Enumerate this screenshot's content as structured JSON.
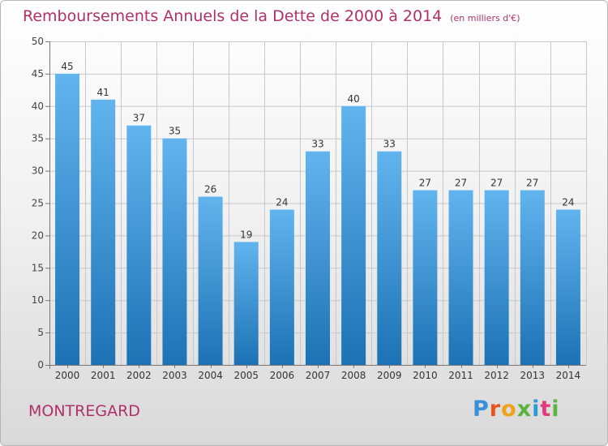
{
  "header": {
    "title": "Remboursements Annuels de la Dette de 2000 à 2014",
    "unit": "(en milliers d'€)"
  },
  "footer": {
    "commune": "MONTREGARD",
    "logo": "Proxiti"
  },
  "colors": {
    "title": "#b0306a",
    "bar_top": "#62b4ee",
    "bar_bottom": "#1c72b4"
  },
  "chart_data": {
    "type": "bar",
    "categories": [
      "2000",
      "2001",
      "2002",
      "2003",
      "2004",
      "2005",
      "2006",
      "2007",
      "2008",
      "2009",
      "2010",
      "2011",
      "2012",
      "2013",
      "2014"
    ],
    "values": [
      45,
      41,
      37,
      35,
      26,
      19,
      24,
      33,
      40,
      33,
      27,
      27,
      27,
      27,
      24
    ],
    "title": "Remboursements Annuels de la Dette de 2000 à 2014",
    "unit": "(en milliers d'€)",
    "xlabel": "",
    "ylabel": "",
    "ylim": [
      0,
      50
    ],
    "yticks": [
      0,
      5,
      10,
      15,
      20,
      25,
      30,
      35,
      40,
      45,
      50
    ],
    "grid": true,
    "data_labels": true
  }
}
